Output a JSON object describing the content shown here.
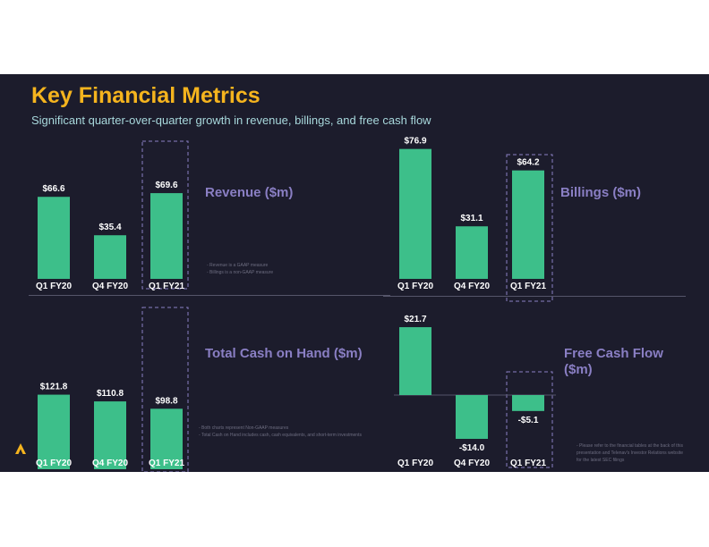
{
  "title": "Key Financial Metrics",
  "subtitle": "Significant quarter-over-quarter growth in revenue, billings, and free cash flow",
  "colors": {
    "background": "#1c1c2c",
    "title": "#f5b41e",
    "subtitle": "#a8d8dc",
    "bar": "#3dbf8a",
    "panel_title": "#8a7fc4",
    "highlight_box": "#8a7fc4",
    "text": "#ffffff"
  },
  "chart_data": [
    {
      "type": "bar",
      "title": "Revenue ($m)",
      "categories": [
        "Q1 FY20",
        "Q4 FY20",
        "Q1 FY21"
      ],
      "values": [
        66.6,
        35.4,
        69.6
      ],
      "labels": [
        "$66.6",
        "$35.4",
        "$69.6"
      ],
      "highlight": "Q1 FY21"
    },
    {
      "type": "bar",
      "title": "Billings ($m)",
      "categories": [
        "Q1 FY20",
        "Q4 FY20",
        "Q1 FY21"
      ],
      "values": [
        76.9,
        31.1,
        64.2
      ],
      "labels": [
        "$76.9",
        "$31.1",
        "$64.2"
      ],
      "highlight": "Q1 FY21"
    },
    {
      "type": "bar",
      "title": "Total Cash on Hand ($m)",
      "categories": [
        "Q1 FY20",
        "Q4 FY20",
        "Q1 FY21"
      ],
      "values": [
        121.8,
        110.8,
        98.8
      ],
      "labels": [
        "$121.8",
        "$110.8",
        "$98.8"
      ],
      "highlight": "Q1 FY21"
    },
    {
      "type": "bar",
      "title": "Free Cash Flow ($m)",
      "categories": [
        "Q1 FY20",
        "Q4 FY20",
        "Q1 FY21"
      ],
      "values": [
        21.7,
        -14.0,
        -5.1
      ],
      "labels": [
        "$21.7",
        "-$14.0",
        "-$5.1"
      ],
      "highlight": "Q1 FY21"
    }
  ],
  "panel_titles": {
    "revenue": "Revenue ($m)",
    "billings": "Billings ($m)",
    "cash": "Total Cash on Hand ($m)",
    "fcf_line1": "Free Cash Flow",
    "fcf_line2": "($m)"
  },
  "notes": {
    "top_1": "- Revenue is a GAAP measure",
    "top_2": "- Billings is a non-GAAP measure",
    "bottom_1": "- Both charts represent Non-GAAP measures",
    "bottom_2": "- Total Cash on Hand includes cash, cash equivalents, and short-term investments",
    "right_1": "- Please refer to the financial tables at the back of this",
    "right_2": "presentation and Telenav's Investor Relations website",
    "right_3": "for the latest SEC filings"
  },
  "logo_icon": "triangle-logo-icon"
}
